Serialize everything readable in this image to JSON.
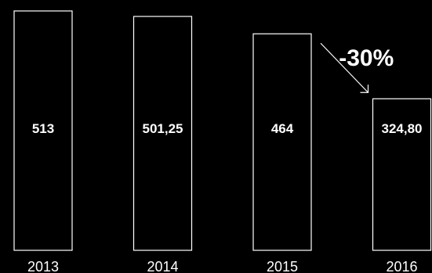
{
  "chart_data": {
    "type": "bar",
    "categories": [
      "2013",
      "2014",
      "2015",
      "2016"
    ],
    "values": [
      513,
      501.25,
      464,
      324.8
    ],
    "value_labels": [
      "513",
      "501,25",
      "464",
      "324,80"
    ],
    "ylim": [
      0,
      513
    ],
    "grid": false,
    "annotation": {
      "text": "-30%",
      "from_category": "2015",
      "to_category": "2016"
    },
    "colors": {
      "background": "#000000",
      "bar_stroke": "#ffffff",
      "text": "#ffffff"
    }
  }
}
